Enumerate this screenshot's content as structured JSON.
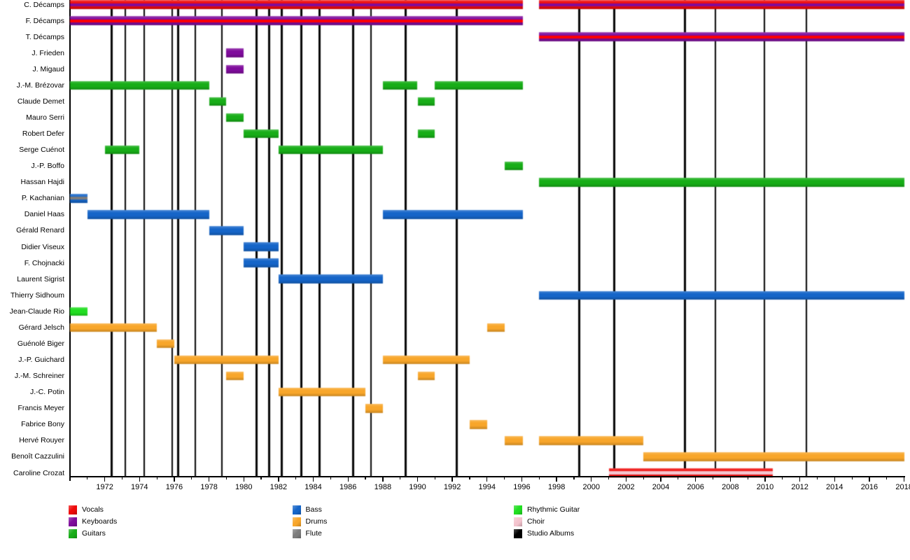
{
  "chart_data": {
    "type": "timeline",
    "title": "",
    "x_axis": {
      "start_year": 1970,
      "end_year": 2018,
      "major_tick_years": [
        1972,
        1974,
        1976,
        1978,
        1980,
        1982,
        1984,
        1986,
        1988,
        1990,
        1992,
        1994,
        1996,
        1998,
        2000,
        2002,
        2004,
        2006,
        2008,
        2010,
        2012,
        2014,
        2016,
        2018
      ],
      "minor_tick_step": 1
    },
    "colors": {
      "vocals": "#ee0a0a",
      "vocals_stripe": "#ff0000",
      "keyboards": "#7f0c9c",
      "guitars": "#17ad17",
      "bass": "#1565c8",
      "drums": "#f8a62a",
      "flute": "#7d7d7d",
      "rhythmic_guitar": "#21de21",
      "choir": "#f4c4ce",
      "studio_albums": "#000000"
    },
    "members": [
      {
        "name": "C. Décamps",
        "roles": [
          "vocals",
          "keyboards"
        ],
        "segments": [
          [
            1970,
            1996.05
          ],
          [
            1997,
            2018
          ]
        ]
      },
      {
        "name": "F. Décamps",
        "roles": [
          "keyboards",
          "vocals"
        ],
        "segments": [
          [
            1970,
            1996.05
          ]
        ]
      },
      {
        "name": "T. Décamps",
        "roles": [
          "keyboards",
          "vocals"
        ],
        "segments": [
          [
            1997,
            2018
          ]
        ]
      },
      {
        "name": "J. Frieden",
        "roles": [
          "keyboards"
        ],
        "segments": [
          [
            1979,
            1980
          ]
        ]
      },
      {
        "name": "J. Migaud",
        "roles": [
          "keyboards"
        ],
        "segments": [
          [
            1979,
            1980
          ]
        ]
      },
      {
        "name": "J.-M. Brézovar",
        "roles": [
          "guitars"
        ],
        "segments": [
          [
            1970,
            1978
          ],
          [
            1988,
            1990
          ],
          [
            1991,
            1996.05
          ]
        ]
      },
      {
        "name": "Claude Demet",
        "roles": [
          "guitars"
        ],
        "segments": [
          [
            1978,
            1979
          ],
          [
            1990,
            1991
          ]
        ]
      },
      {
        "name": "Mauro Serri",
        "roles": [
          "guitars"
        ],
        "segments": [
          [
            1979,
            1980
          ]
        ]
      },
      {
        "name": "Robert Defer",
        "roles": [
          "guitars"
        ],
        "segments": [
          [
            1980,
            1982
          ],
          [
            1990,
            1991
          ]
        ]
      },
      {
        "name": "Serge Cuénot",
        "roles": [
          "guitars"
        ],
        "segments": [
          [
            1972,
            1974
          ],
          [
            1982,
            1988
          ]
        ]
      },
      {
        "name": "J.-P. Boffo",
        "roles": [
          "guitars"
        ],
        "segments": [
          [
            1995,
            1996.05
          ]
        ]
      },
      {
        "name": "Hassan Hajdi",
        "roles": [
          "guitars"
        ],
        "segments": [
          [
            1997,
            2018
          ]
        ]
      },
      {
        "name": "P. Kachanian",
        "roles": [
          "bass",
          "flute"
        ],
        "segments": [
          [
            1970,
            1971
          ]
        ]
      },
      {
        "name": "Daniel Haas",
        "roles": [
          "bass"
        ],
        "segments": [
          [
            1971,
            1978
          ],
          [
            1988,
            1996.05
          ]
        ]
      },
      {
        "name": "Gérald Renard",
        "roles": [
          "bass"
        ],
        "segments": [
          [
            1978,
            1980
          ]
        ]
      },
      {
        "name": "Didier Viseux",
        "roles": [
          "bass"
        ],
        "segments": [
          [
            1980,
            1982
          ]
        ]
      },
      {
        "name": "F. Chojnacki",
        "roles": [
          "bass"
        ],
        "segments": [
          [
            1980,
            1982
          ]
        ]
      },
      {
        "name": "Laurent Sigrist",
        "roles": [
          "bass"
        ],
        "segments": [
          [
            1982,
            1988
          ]
        ]
      },
      {
        "name": "Thierry Sidhoum",
        "roles": [
          "bass"
        ],
        "segments": [
          [
            1997,
            2018
          ]
        ]
      },
      {
        "name": "Jean-Claude Rio",
        "roles": [
          "rhythmic_guitar"
        ],
        "segments": [
          [
            1970,
            1971
          ]
        ]
      },
      {
        "name": "Gérard Jelsch",
        "roles": [
          "drums"
        ],
        "segments": [
          [
            1970,
            1975
          ],
          [
            1994,
            1995
          ]
        ]
      },
      {
        "name": "Guénolé Biger",
        "roles": [
          "drums"
        ],
        "segments": [
          [
            1975,
            1976
          ]
        ]
      },
      {
        "name": "J.-P. Guichard",
        "roles": [
          "drums"
        ],
        "segments": [
          [
            1976,
            1982
          ],
          [
            1988,
            1993
          ]
        ]
      },
      {
        "name": "J.-M. Schreiner",
        "roles": [
          "drums"
        ],
        "segments": [
          [
            1979,
            1980
          ],
          [
            1990,
            1991
          ]
        ]
      },
      {
        "name": "J.-C. Potin",
        "roles": [
          "drums"
        ],
        "segments": [
          [
            1982,
            1987
          ]
        ]
      },
      {
        "name": "Francis Meyer",
        "roles": [
          "drums"
        ],
        "segments": [
          [
            1987,
            1988
          ]
        ]
      },
      {
        "name": "Fabrice Bony",
        "roles": [
          "drums"
        ],
        "segments": [
          [
            1993,
            1994
          ]
        ]
      },
      {
        "name": "Hervé Rouyer",
        "roles": [
          "drums"
        ],
        "segments": [
          [
            1995,
            1996.05
          ],
          [
            1997,
            2003
          ]
        ]
      },
      {
        "name": "Benoît Cazzulini",
        "roles": [
          "drums"
        ],
        "segments": [
          [
            2003,
            2018
          ]
        ]
      },
      {
        "name": "Caroline Crozat",
        "roles": [
          "vocals",
          "choir"
        ],
        "segments": [
          [
            2001,
            2010.45
          ]
        ]
      }
    ],
    "album_release_dates": [
      1972.41,
      1973.18,
      1974.27,
      1975.88,
      1976.21,
      1977.21,
      1978.74,
      1980.74,
      1981.46,
      1982.2,
      1983.31,
      1984.36,
      1986.31,
      1987.32,
      1989.33,
      1992.27,
      1999.32,
      2001.32,
      2005.38,
      2007.14,
      2009.96,
      2012.38
    ],
    "legend": {
      "columns": [
        {
          "items": [
            {
              "label": "Vocals",
              "color": "vocals"
            },
            {
              "label": "Keyboards",
              "color": "keyboards"
            },
            {
              "label": "Guitars",
              "color": "guitars"
            }
          ]
        },
        {
          "items": [
            {
              "label": "Bass",
              "color": "bass"
            },
            {
              "label": "Drums",
              "color": "drums"
            },
            {
              "label": "Flute",
              "color": "flute"
            }
          ]
        },
        {
          "items": [
            {
              "label": "Rhythmic Guitar",
              "color": "rhythmic_guitar"
            },
            {
              "label": "Choir",
              "color": "choir"
            },
            {
              "label": "Studio Albums",
              "color": "studio_albums"
            }
          ]
        }
      ]
    }
  }
}
